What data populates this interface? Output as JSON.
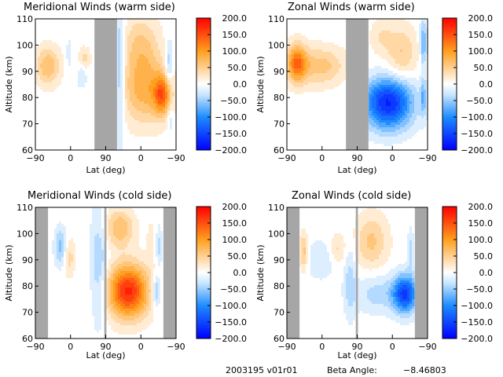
{
  "colorbar": {
    "ticks": [
      200.0,
      150.0,
      100.0,
      50.0,
      0.0,
      -50.0,
      -100.0,
      -150.0,
      -200.0
    ],
    "tick_labels": [
      "200.0",
      "150.0",
      "100.0",
      "50.0",
      "0.0",
      "−50.0",
      "−100.0",
      "−150.0",
      "−200.0"
    ],
    "range": [
      -200,
      200
    ],
    "colors": [
      "#0000ff",
      "#1e8cff",
      "#c8e6ff",
      "#ffffff",
      "#ffe0b8",
      "#ff9f1e",
      "#ff0000"
    ]
  },
  "chart_data": [
    {
      "type": "heatmap",
      "title": "Meridional Winds (warm side)",
      "xlabel": "Lat (deg)",
      "ylabel": "Altitude (km)",
      "xtick_labels": [
        "−90",
        "0",
        "90",
        "0",
        "−90"
      ],
      "yticks": [
        60,
        70,
        80,
        90,
        100,
        110
      ],
      "ylim": [
        60,
        110
      ],
      "gap_bands": [
        [
          0.42,
          0.58
        ]
      ],
      "features": [
        {
          "x": 0.09,
          "alt": 92,
          "value": 70,
          "sx": 0.06,
          "sy": 5
        },
        {
          "x": 0.35,
          "alt": 95,
          "value": 35,
          "sx": 0.03,
          "sy": 3
        },
        {
          "x": 0.24,
          "alt": 97,
          "value": -25,
          "sx": 0.015,
          "sy": 4
        },
        {
          "x": 0.33,
          "alt": 88,
          "value": -30,
          "sx": 0.025,
          "sy": 3
        },
        {
          "x": 0.6,
          "alt": 90,
          "value": -60,
          "sx": 0.025,
          "sy": 18
        },
        {
          "x": 0.75,
          "alt": 100,
          "value": 50,
          "sx": 0.09,
          "sy": 8
        },
        {
          "x": 0.78,
          "alt": 83,
          "value": 80,
          "sx": 0.12,
          "sy": 9
        },
        {
          "x": 0.9,
          "alt": 81,
          "value": 110,
          "sx": 0.04,
          "sy": 5
        },
        {
          "x": 0.95,
          "alt": 93,
          "value": -55,
          "sx": 0.02,
          "sy": 6
        },
        {
          "x": 0.96,
          "alt": 72,
          "value": -30,
          "sx": 0.015,
          "sy": 4
        }
      ]
    },
    {
      "type": "heatmap",
      "title": "Zonal Winds (warm side)",
      "xlabel": "Lat (deg)",
      "ylabel": "Altitude (km)",
      "xtick_labels": [
        "−90",
        "0",
        "90",
        "0",
        "−90"
      ],
      "yticks": [
        60,
        70,
        80,
        90,
        100,
        110
      ],
      "ylim": [
        60,
        110
      ],
      "gap_bands": [
        [
          0.42,
          0.58
        ]
      ],
      "features": [
        {
          "x": 0.07,
          "alt": 93,
          "value": 120,
          "sx": 0.05,
          "sy": 5
        },
        {
          "x": 0.24,
          "alt": 92,
          "value": 60,
          "sx": 0.12,
          "sy": 5
        },
        {
          "x": 0.82,
          "alt": 97,
          "value": 50,
          "sx": 0.07,
          "sy": 7
        },
        {
          "x": 0.68,
          "alt": 103,
          "value": 30,
          "sx": 0.06,
          "sy": 5
        },
        {
          "x": 0.72,
          "alt": 79,
          "value": -160,
          "sx": 0.12,
          "sy": 6
        },
        {
          "x": 0.72,
          "alt": 71,
          "value": -40,
          "sx": 0.12,
          "sy": 5
        },
        {
          "x": 0.97,
          "alt": 101,
          "value": -80,
          "sx": 0.015,
          "sy": 6
        },
        {
          "x": 0.97,
          "alt": 80,
          "value": -60,
          "sx": 0.015,
          "sy": 5
        }
      ]
    },
    {
      "type": "heatmap",
      "title": "Meridional Winds (cold side)",
      "xlabel": "Lat (deg)",
      "ylabel": "Altitude (km)",
      "xtick_labels": [
        "−90",
        "0",
        "90",
        "0",
        "−90"
      ],
      "yticks": [
        60,
        70,
        80,
        90,
        100,
        110
      ],
      "ylim": [
        60,
        110
      ],
      "gap_bands": [
        [
          0.0,
          0.09
        ],
        [
          0.49,
          0.505
        ],
        [
          0.91,
          1.0
        ]
      ],
      "features": [
        {
          "x": 0.18,
          "alt": 95,
          "value": -60,
          "sx": 0.03,
          "sy": 5
        },
        {
          "x": 0.24,
          "alt": 91,
          "value": 40,
          "sx": 0.03,
          "sy": 5
        },
        {
          "x": 0.45,
          "alt": 88,
          "value": -50,
          "sx": 0.04,
          "sy": 15
        },
        {
          "x": 0.6,
          "alt": 102,
          "value": 70,
          "sx": 0.07,
          "sy": 5
        },
        {
          "x": 0.66,
          "alt": 78,
          "value": 175,
          "sx": 0.1,
          "sy": 7
        },
        {
          "x": 0.86,
          "alt": 78,
          "value": -70,
          "sx": 0.02,
          "sy": 4
        },
        {
          "x": 0.82,
          "alt": 97,
          "value": 20,
          "sx": 0.02,
          "sy": 6
        },
        {
          "x": 0.88,
          "alt": 95,
          "value": -40,
          "sx": 0.015,
          "sy": 5
        }
      ]
    },
    {
      "type": "heatmap",
      "title": "Zonal Winds (cold side)",
      "xlabel": "Lat (deg)",
      "ylabel": "Altitude (km)",
      "xtick_labels": [
        "−90",
        "0",
        "90",
        "0",
        "−90"
      ],
      "yticks": [
        60,
        70,
        80,
        90,
        100,
        110
      ],
      "ylim": [
        60,
        110
      ],
      "gap_bands": [
        [
          0.0,
          0.09
        ],
        [
          0.49,
          0.505
        ],
        [
          0.91,
          1.0
        ]
      ],
      "features": [
        {
          "x": 0.12,
          "alt": 93,
          "value": 60,
          "sx": 0.02,
          "sy": 5
        },
        {
          "x": 0.24,
          "alt": 90,
          "value": -30,
          "sx": 0.07,
          "sy": 5
        },
        {
          "x": 0.36,
          "alt": 94,
          "value": 35,
          "sx": 0.04,
          "sy": 4
        },
        {
          "x": 0.6,
          "alt": 97,
          "value": 55,
          "sx": 0.08,
          "sy": 7
        },
        {
          "x": 0.65,
          "alt": 77,
          "value": -40,
          "sx": 0.12,
          "sy": 5
        },
        {
          "x": 0.84,
          "alt": 77,
          "value": -150,
          "sx": 0.06,
          "sy": 5
        },
        {
          "x": 0.45,
          "alt": 82,
          "value": -40,
          "sx": 0.03,
          "sy": 10
        },
        {
          "x": 0.88,
          "alt": 93,
          "value": -40,
          "sx": 0.015,
          "sy": 6
        }
      ]
    }
  ],
  "footer": {
    "orbit_label": "2003195 v01r01",
    "beta_label": "Beta Angle:",
    "beta_value": "−8.46803"
  }
}
